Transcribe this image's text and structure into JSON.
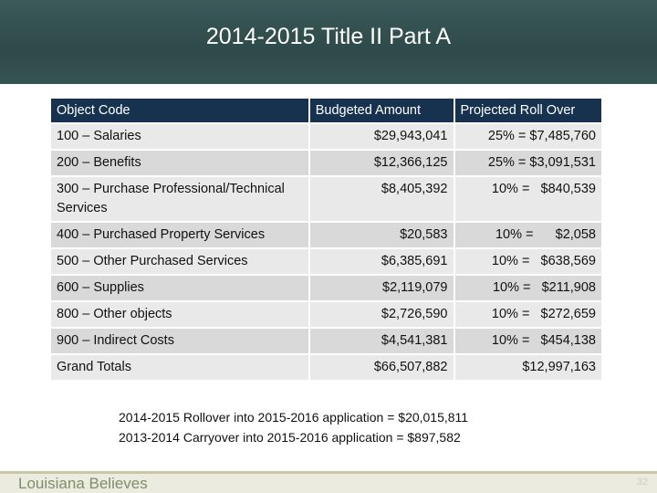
{
  "header": {
    "title": "2014-2015 Title II Part A"
  },
  "table": {
    "columns": [
      "Object Code",
      "Budgeted Amount",
      "Projected Roll Over"
    ],
    "rows": [
      [
        "100 – Salaries",
        "$29,943,041",
        "25% = $7,485,760"
      ],
      [
        "200 – Benefits",
        "$12,366,125",
        "25% = $3,091,531"
      ],
      [
        "300 – Purchase Professional/Technical Services",
        "$8,405,392",
        "10% =   $840,539"
      ],
      [
        "400 – Purchased Property Services",
        "$20,583",
        "10% =      $2,058"
      ],
      [
        "500 – Other Purchased Services",
        "$6,385,691",
        "10% =   $638,569"
      ],
      [
        "600 – Supplies",
        "$2,119,079",
        "10% =   $211,908"
      ],
      [
        "800 – Other objects",
        "$2,726,590",
        "10% =   $272,659"
      ],
      [
        "900 – Indirect Costs",
        "$4,541,381",
        "10% =   $454,138"
      ],
      [
        "Grand Totals",
        "$66,507,882",
        "$12,997,163"
      ]
    ]
  },
  "notes": [
    "2014-2015 Rollover into 2015-2016 application = $20,015,811",
    "2013-2014 Carryover into 2015-2016 application = $897,582"
  ],
  "footer": {
    "brand": "Louisiana Believes",
    "page": "32"
  }
}
